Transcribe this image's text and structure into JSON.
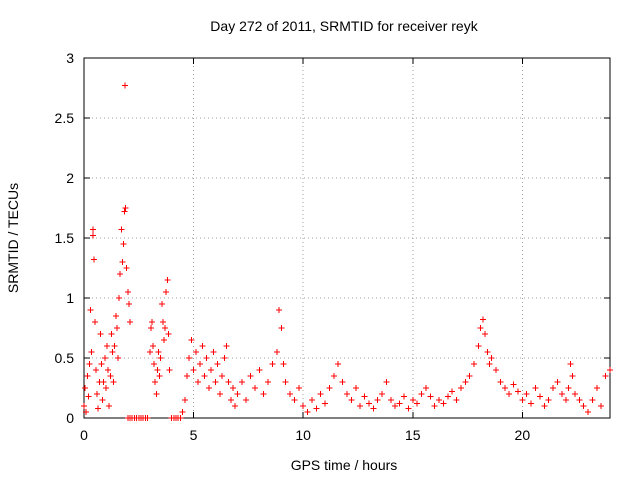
{
  "chart_data": {
    "type": "scatter",
    "title": "Day 272 of 2011, SRMTID for receiver reyk",
    "xlabel": "GPS time / hours",
    "ylabel": "SRMTID / TECUs",
    "xlim": [
      0,
      24
    ],
    "ylim": [
      0,
      3
    ],
    "x_ticks": [
      0,
      5,
      10,
      15,
      20
    ],
    "y_ticks": [
      0,
      0.5,
      1,
      1.5,
      2,
      2.5,
      3
    ],
    "x_tick_labels": [
      "0",
      "5",
      "10",
      "15",
      "20"
    ],
    "y_tick_labels": [
      "0",
      "0.5",
      "1",
      "1.5",
      "2",
      "2.5",
      "3"
    ],
    "grid": true,
    "marker": "+",
    "color": "#ff0000",
    "series": [
      {
        "name": "SRMTID",
        "points": [
          [
            0.0,
            0.1
          ],
          [
            0.05,
            0.25
          ],
          [
            0.1,
            0.05
          ],
          [
            0.15,
            0.35
          ],
          [
            0.2,
            0.18
          ],
          [
            0.25,
            0.45
          ],
          [
            0.3,
            0.9
          ],
          [
            0.35,
            0.55
          ],
          [
            0.4,
            1.57
          ],
          [
            0.42,
            1.52
          ],
          [
            0.45,
            1.32
          ],
          [
            0.5,
            0.8
          ],
          [
            0.55,
            0.4
          ],
          [
            0.6,
            0.2
          ],
          [
            0.65,
            0.08
          ],
          [
            0.7,
            0.3
          ],
          [
            0.75,
            0.7
          ],
          [
            0.8,
            0.45
          ],
          [
            0.85,
            0.15
          ],
          [
            0.9,
            0.3
          ],
          [
            0.95,
            0.5
          ],
          [
            1.0,
            0.25
          ],
          [
            1.05,
            0.6
          ],
          [
            1.1,
            0.4
          ],
          [
            1.15,
            0.1
          ],
          [
            1.2,
            0.35
          ],
          [
            1.25,
            0.7
          ],
          [
            1.3,
            0.55
          ],
          [
            1.35,
            0.3
          ],
          [
            1.4,
            0.6
          ],
          [
            1.45,
            0.85
          ],
          [
            1.5,
            0.75
          ],
          [
            1.55,
            0.5
          ],
          [
            1.6,
            1.0
          ],
          [
            1.65,
            1.2
          ],
          [
            1.7,
            1.57
          ],
          [
            1.75,
            1.3
          ],
          [
            1.8,
            1.45
          ],
          [
            1.85,
            1.72
          ],
          [
            1.88,
            2.77
          ],
          [
            1.9,
            1.75
          ],
          [
            1.95,
            1.25
          ],
          [
            2.0,
            1.05
          ],
          [
            2.05,
            0.95
          ],
          [
            2.1,
            0.8
          ],
          [
            2.0,
            0.0
          ],
          [
            2.1,
            0.0
          ],
          [
            2.2,
            0.0
          ],
          [
            2.3,
            0.0
          ],
          [
            2.4,
            0.0
          ],
          [
            2.5,
            0.0
          ],
          [
            2.6,
            0.0
          ],
          [
            2.7,
            0.0
          ],
          [
            2.8,
            0.0
          ],
          [
            2.9,
            0.0
          ],
          [
            3.0,
            0.55
          ],
          [
            3.05,
            0.75
          ],
          [
            3.1,
            0.8
          ],
          [
            3.15,
            0.6
          ],
          [
            3.2,
            0.45
          ],
          [
            3.25,
            0.3
          ],
          [
            3.3,
            0.2
          ],
          [
            3.35,
            0.4
          ],
          [
            3.4,
            0.55
          ],
          [
            3.45,
            0.35
          ],
          [
            3.5,
            0.5
          ],
          [
            3.55,
            0.95
          ],
          [
            3.6,
            0.8
          ],
          [
            3.65,
            0.65
          ],
          [
            3.7,
            0.75
          ],
          [
            3.75,
            1.05
          ],
          [
            3.8,
            1.15
          ],
          [
            3.85,
            0.7
          ],
          [
            3.9,
            0.4
          ],
          [
            4.0,
            0.0
          ],
          [
            4.1,
            0.0
          ],
          [
            4.2,
            0.0
          ],
          [
            4.3,
            0.0
          ],
          [
            4.4,
            0.0
          ],
          [
            4.5,
            0.05
          ],
          [
            4.6,
            0.15
          ],
          [
            4.7,
            0.35
          ],
          [
            4.8,
            0.5
          ],
          [
            4.9,
            0.65
          ],
          [
            5.0,
            0.4
          ],
          [
            5.1,
            0.55
          ],
          [
            5.2,
            0.3
          ],
          [
            5.3,
            0.45
          ],
          [
            5.4,
            0.6
          ],
          [
            5.5,
            0.35
          ],
          [
            5.6,
            0.5
          ],
          [
            5.7,
            0.25
          ],
          [
            5.8,
            0.4
          ],
          [
            5.9,
            0.55
          ],
          [
            6.0,
            0.3
          ],
          [
            6.1,
            0.45
          ],
          [
            6.2,
            0.2
          ],
          [
            6.3,
            0.35
          ],
          [
            6.4,
            0.5
          ],
          [
            6.5,
            0.6
          ],
          [
            6.6,
            0.3
          ],
          [
            6.7,
            0.15
          ],
          [
            6.8,
            0.25
          ],
          [
            6.9,
            0.1
          ],
          [
            7.0,
            0.2
          ],
          [
            7.2,
            0.3
          ],
          [
            7.4,
            0.15
          ],
          [
            7.6,
            0.35
          ],
          [
            7.8,
            0.25
          ],
          [
            8.0,
            0.4
          ],
          [
            8.2,
            0.2
          ],
          [
            8.4,
            0.3
          ],
          [
            8.6,
            0.45
          ],
          [
            8.8,
            0.55
          ],
          [
            8.9,
            0.9
          ],
          [
            9.0,
            0.75
          ],
          [
            9.1,
            0.45
          ],
          [
            9.2,
            0.3
          ],
          [
            9.4,
            0.2
          ],
          [
            9.6,
            0.15
          ],
          [
            9.8,
            0.25
          ],
          [
            10.0,
            0.1
          ],
          [
            10.2,
            0.05
          ],
          [
            10.4,
            0.15
          ],
          [
            10.6,
            0.08
          ],
          [
            10.8,
            0.2
          ],
          [
            11.0,
            0.12
          ],
          [
            11.2,
            0.25
          ],
          [
            11.4,
            0.35
          ],
          [
            11.6,
            0.45
          ],
          [
            11.8,
            0.3
          ],
          [
            12.0,
            0.2
          ],
          [
            12.2,
            0.15
          ],
          [
            12.4,
            0.25
          ],
          [
            12.6,
            0.1
          ],
          [
            12.8,
            0.18
          ],
          [
            13.0,
            0.12
          ],
          [
            13.2,
            0.08
          ],
          [
            13.4,
            0.15
          ],
          [
            13.6,
            0.2
          ],
          [
            13.8,
            0.3
          ],
          [
            14.0,
            0.15
          ],
          [
            14.2,
            0.1
          ],
          [
            14.4,
            0.12
          ],
          [
            14.6,
            0.18
          ],
          [
            14.8,
            0.08
          ],
          [
            15.0,
            0.15
          ],
          [
            15.2,
            0.12
          ],
          [
            15.4,
            0.2
          ],
          [
            15.6,
            0.25
          ],
          [
            15.8,
            0.18
          ],
          [
            16.0,
            0.1
          ],
          [
            16.2,
            0.15
          ],
          [
            16.4,
            0.12
          ],
          [
            16.6,
            0.18
          ],
          [
            16.8,
            0.22
          ],
          [
            17.0,
            0.15
          ],
          [
            17.2,
            0.25
          ],
          [
            17.4,
            0.3
          ],
          [
            17.6,
            0.35
          ],
          [
            17.8,
            0.45
          ],
          [
            18.0,
            0.6
          ],
          [
            18.1,
            0.75
          ],
          [
            18.2,
            0.82
          ],
          [
            18.3,
            0.7
          ],
          [
            18.4,
            0.55
          ],
          [
            18.5,
            0.45
          ],
          [
            18.6,
            0.5
          ],
          [
            18.8,
            0.4
          ],
          [
            19.0,
            0.3
          ],
          [
            19.2,
            0.25
          ],
          [
            19.4,
            0.2
          ],
          [
            19.6,
            0.28
          ],
          [
            19.8,
            0.22
          ],
          [
            20.0,
            0.15
          ],
          [
            20.2,
            0.2
          ],
          [
            20.4,
            0.12
          ],
          [
            20.6,
            0.25
          ],
          [
            20.8,
            0.18
          ],
          [
            21.0,
            0.1
          ],
          [
            21.2,
            0.15
          ],
          [
            21.4,
            0.25
          ],
          [
            21.6,
            0.3
          ],
          [
            21.8,
            0.2
          ],
          [
            22.0,
            0.15
          ],
          [
            22.1,
            0.25
          ],
          [
            22.2,
            0.45
          ],
          [
            22.3,
            0.35
          ],
          [
            22.4,
            0.2
          ],
          [
            22.6,
            0.15
          ],
          [
            22.8,
            0.1
          ],
          [
            23.0,
            0.05
          ],
          [
            23.2,
            0.15
          ],
          [
            23.4,
            0.25
          ],
          [
            23.6,
            0.1
          ],
          [
            23.8,
            0.35
          ],
          [
            24.0,
            0.4
          ]
        ]
      }
    ]
  }
}
